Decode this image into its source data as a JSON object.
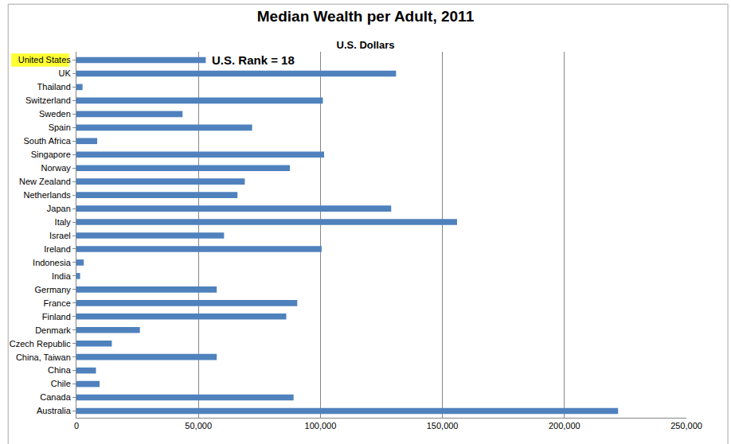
{
  "chart_data": {
    "type": "bar",
    "orientation": "horizontal",
    "title": "Median Wealth per Adult, 2011",
    "subtitle": "U.S. Dollars",
    "categories": [
      "United States",
      "UK",
      "Thailand",
      "Switzerland",
      "Sweden",
      "Spain",
      "South Africa",
      "Singapore",
      "Norway",
      "New Zealand",
      "Netherlands",
      "Japan",
      "Italy",
      "Israel",
      "Ireland",
      "Indonesia",
      "India",
      "Germany",
      "France",
      "Finland",
      "Denmark",
      "Czech Republic",
      "China, Taiwan",
      "China",
      "Chile",
      "Canada",
      "Australia"
    ],
    "values": [
      53000,
      131000,
      2500,
      101000,
      43500,
      72000,
      8500,
      101500,
      87500,
      69000,
      66000,
      129000,
      156000,
      60500,
      100500,
      3000,
      1500,
      57500,
      90500,
      86000,
      26000,
      14500,
      57500,
      8000,
      9500,
      89000,
      222000
    ],
    "color": "#4f81bd",
    "xlim": [
      0,
      250000
    ],
    "xticks": [
      0,
      {
        "value": 50000,
        "label": "50,000"
      },
      {
        "value": 100000,
        "label": "100,000"
      },
      {
        "value": 150000,
        "label": "150,000"
      },
      {
        "value": 200000,
        "label": "200,000"
      },
      {
        "value": 250000,
        "label": "250,000"
      }
    ],
    "grid": true,
    "annotations": [
      {
        "text": "U.S. Rank = 18",
        "category": "United States"
      }
    ]
  }
}
